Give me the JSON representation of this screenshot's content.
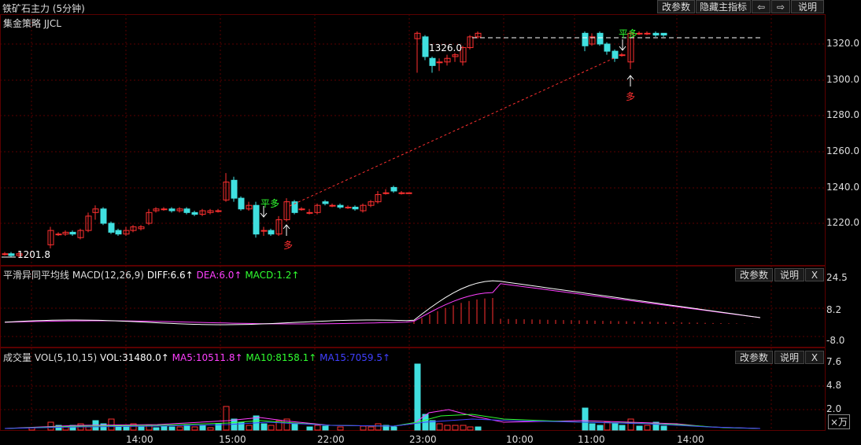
{
  "header": {
    "title": "铁矿石主力 (5分钟)",
    "buttons": [
      "改参数",
      "隐藏主指标",
      "⇦",
      "⇨",
      "说明"
    ]
  },
  "main_panel": {
    "strategy_label": "集金策略 JJCL",
    "y_ticks": [
      "1320.0",
      "1300.0",
      "1280.0",
      "1260.0",
      "1240.0",
      "1220.0"
    ],
    "annotations": {
      "low_price": "1201.8",
      "high_price": "1326.0",
      "ping_duo_1": "平多",
      "duo_1": "多",
      "ping_duo_2": "平多",
      "duo_2": "多"
    }
  },
  "macd_panel": {
    "name": "平滑异同平均线",
    "params": "MACD(12,26,9)",
    "diff": "DIFF:6.6↑",
    "dea": "DEA:6.0↑",
    "macd": "MACD:1.2↑",
    "buttons": [
      "改参数",
      "说明",
      "X"
    ],
    "y_ticks": [
      "24.5",
      "8.2",
      "-8.0"
    ]
  },
  "vol_panel": {
    "name": "成交量",
    "params": "VOL(5,10,15)",
    "vol": "VOL:31480.0↑",
    "ma5": "MA5:10511.8↑",
    "ma10": "MA10:8158.1↑",
    "ma15": "MA15:7059.5↑",
    "buttons": [
      "改参数",
      "说明",
      "X"
    ],
    "y_ticks": [
      "7.6",
      "4.8",
      "2.0"
    ],
    "unit": "×万"
  },
  "time_axis": [
    "14:00",
    "15:00",
    "22:00",
    "23:00",
    "10:00",
    "11:00",
    "14:00"
  ],
  "colors": {
    "up": "#ff3030",
    "down": "#40e0e0",
    "diff": "#ffffff",
    "dea": "#ff40ff",
    "macd_green": "#30ff30",
    "ma15": "#4040ff",
    "grid": "#5a0000"
  }
}
